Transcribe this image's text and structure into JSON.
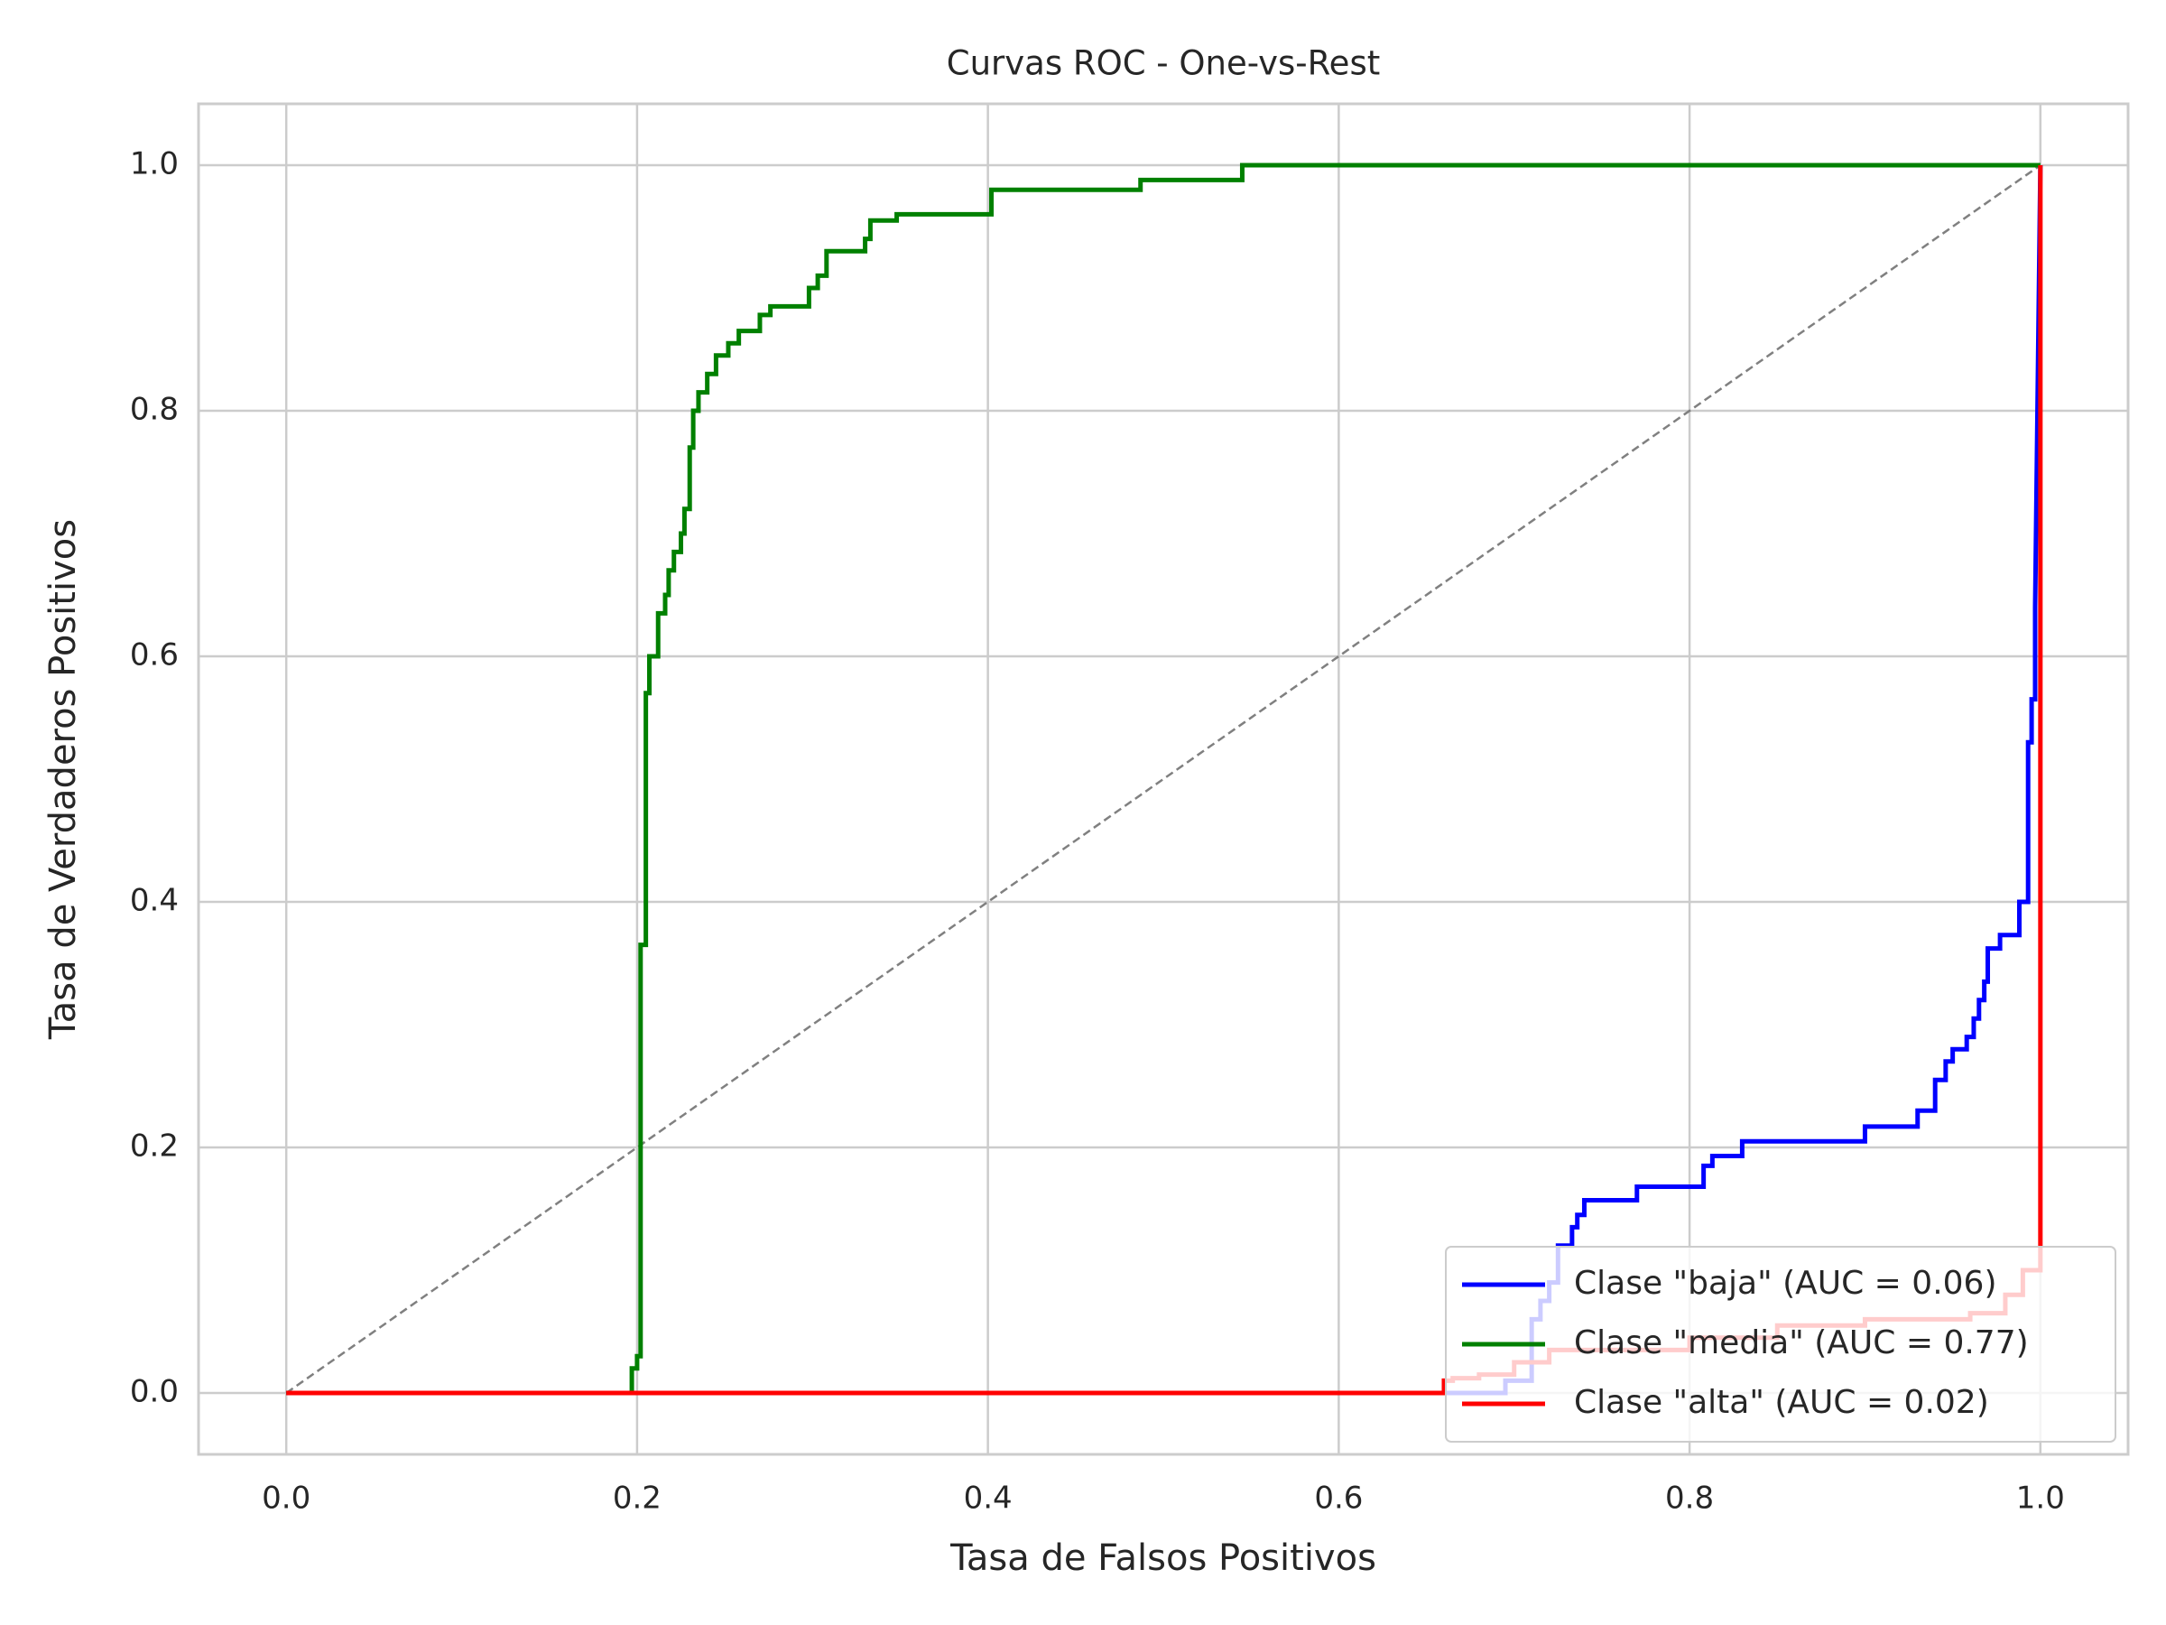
{
  "chart_data": {
    "type": "line",
    "title": "Curvas ROC - One-vs-Rest",
    "xlabel": "Tasa de Falsos Positivos",
    "ylabel": "Tasa de Verdaderos Positivos",
    "xlim": [
      -0.05,
      1.05
    ],
    "ylim": [
      -0.05,
      1.05
    ],
    "xticks": [
      {
        "value": 0,
        "label": "0.0"
      },
      0.2,
      0.4,
      0.6,
      0.8,
      {
        "value": 1,
        "label": "1.0"
      }
    ],
    "yticks": [
      {
        "value": 0,
        "label": "0.0"
      },
      0.2,
      0.4,
      0.6,
      0.8,
      {
        "value": 1,
        "label": "1.0"
      }
    ],
    "grid": true,
    "legend": "lower right",
    "reference_line": {
      "x": [
        0,
        1
      ],
      "values": [
        0,
        1
      ],
      "color": "#808080"
    },
    "series": [
      {
        "name": "Clase \"baja\" (AUC = 0.06)",
        "color": "#0000ff",
        "x": [
          0,
          0.695,
          0.695,
          0.71,
          0.71,
          0.715,
          0.715,
          0.72,
          0.72,
          0.725,
          0.725,
          0.733,
          0.733,
          0.736,
          0.736,
          0.74,
          0.74,
          0.77,
          0.77,
          0.808,
          0.808,
          0.813,
          0.813,
          0.83,
          0.83,
          0.9,
          0.9,
          0.93,
          0.93,
          0.94,
          0.94,
          0.946,
          0.946,
          0.95,
          0.95,
          0.958,
          0.958,
          0.962,
          0.962,
          0.965,
          0.965,
          0.968,
          0.968,
          0.97,
          0.97,
          0.977,
          0.977,
          0.988,
          0.988,
          0.993,
          0.993,
          0.995,
          0.995,
          0.997,
          0.997,
          1
        ],
        "values": [
          0,
          0,
          0.01,
          0.01,
          0.06,
          0.06,
          0.075,
          0.075,
          0.09,
          0.09,
          0.12,
          0.12,
          0.135,
          0.135,
          0.145,
          0.145,
          0.157,
          0.157,
          0.168,
          0.168,
          0.185,
          0.185,
          0.193,
          0.193,
          0.205,
          0.205,
          0.217,
          0.217,
          0.23,
          0.23,
          0.255,
          0.255,
          0.27,
          0.27,
          0.28,
          0.28,
          0.29,
          0.29,
          0.305,
          0.305,
          0.32,
          0.32,
          0.335,
          0.335,
          0.362,
          0.362,
          0.373,
          0.373,
          0.4,
          0.4,
          0.53,
          0.53,
          0.565,
          0.565,
          0.64,
          1
        ]
      },
      {
        "name": "Clase \"media\" (AUC = 0.77)",
        "color": "#008000",
        "x": [
          0,
          0.197,
          0.197,
          0.2,
          0.2,
          0.202,
          0.202,
          0.205,
          0.205,
          0.207,
          0.207,
          0.212,
          0.212,
          0.216,
          0.216,
          0.218,
          0.218,
          0.221,
          0.221,
          0.225,
          0.225,
          0.227,
          0.227,
          0.23,
          0.23,
          0.232,
          0.232,
          0.235,
          0.235,
          0.24,
          0.24,
          0.245,
          0.245,
          0.252,
          0.252,
          0.258,
          0.258,
          0.27,
          0.27,
          0.276,
          0.276,
          0.298,
          0.298,
          0.303,
          0.303,
          0.308,
          0.308,
          0.33,
          0.33,
          0.333,
          0.333,
          0.348,
          0.348,
          0.402,
          0.402,
          0.487,
          0.487,
          0.545,
          0.545,
          1
        ],
        "values": [
          0,
          0,
          0.02,
          0.02,
          0.03,
          0.03,
          0.365,
          0.365,
          0.57,
          0.57,
          0.6,
          0.6,
          0.635,
          0.635,
          0.65,
          0.65,
          0.67,
          0.67,
          0.685,
          0.685,
          0.7,
          0.7,
          0.72,
          0.72,
          0.77,
          0.77,
          0.8,
          0.8,
          0.815,
          0.815,
          0.83,
          0.83,
          0.845,
          0.845,
          0.855,
          0.855,
          0.865,
          0.865,
          0.878,
          0.878,
          0.885,
          0.885,
          0.9,
          0.9,
          0.91,
          0.91,
          0.93,
          0.93,
          0.94,
          0.94,
          0.955,
          0.955,
          0.96,
          0.96,
          0.98,
          0.98,
          0.988,
          0.988,
          1,
          1
        ]
      },
      {
        "name": "Clase \"alta\" (AUC = 0.02)",
        "color": "#ff0000",
        "x": [
          0,
          0.66,
          0.66,
          0.665,
          0.665,
          0.68,
          0.68,
          0.7,
          0.7,
          0.72,
          0.72,
          0.8,
          0.8,
          0.85,
          0.85,
          0.9,
          0.9,
          0.96,
          0.96,
          0.98,
          0.98,
          0.99,
          0.99,
          1,
          1
        ],
        "values": [
          0,
          0,
          0.01,
          0.01,
          0.012,
          0.012,
          0.015,
          0.015,
          0.025,
          0.025,
          0.035,
          0.035,
          0.045,
          0.045,
          0.055,
          0.055,
          0.06,
          0.06,
          0.065,
          0.065,
          0.08,
          0.08,
          0.1,
          0.1,
          1
        ]
      }
    ]
  }
}
